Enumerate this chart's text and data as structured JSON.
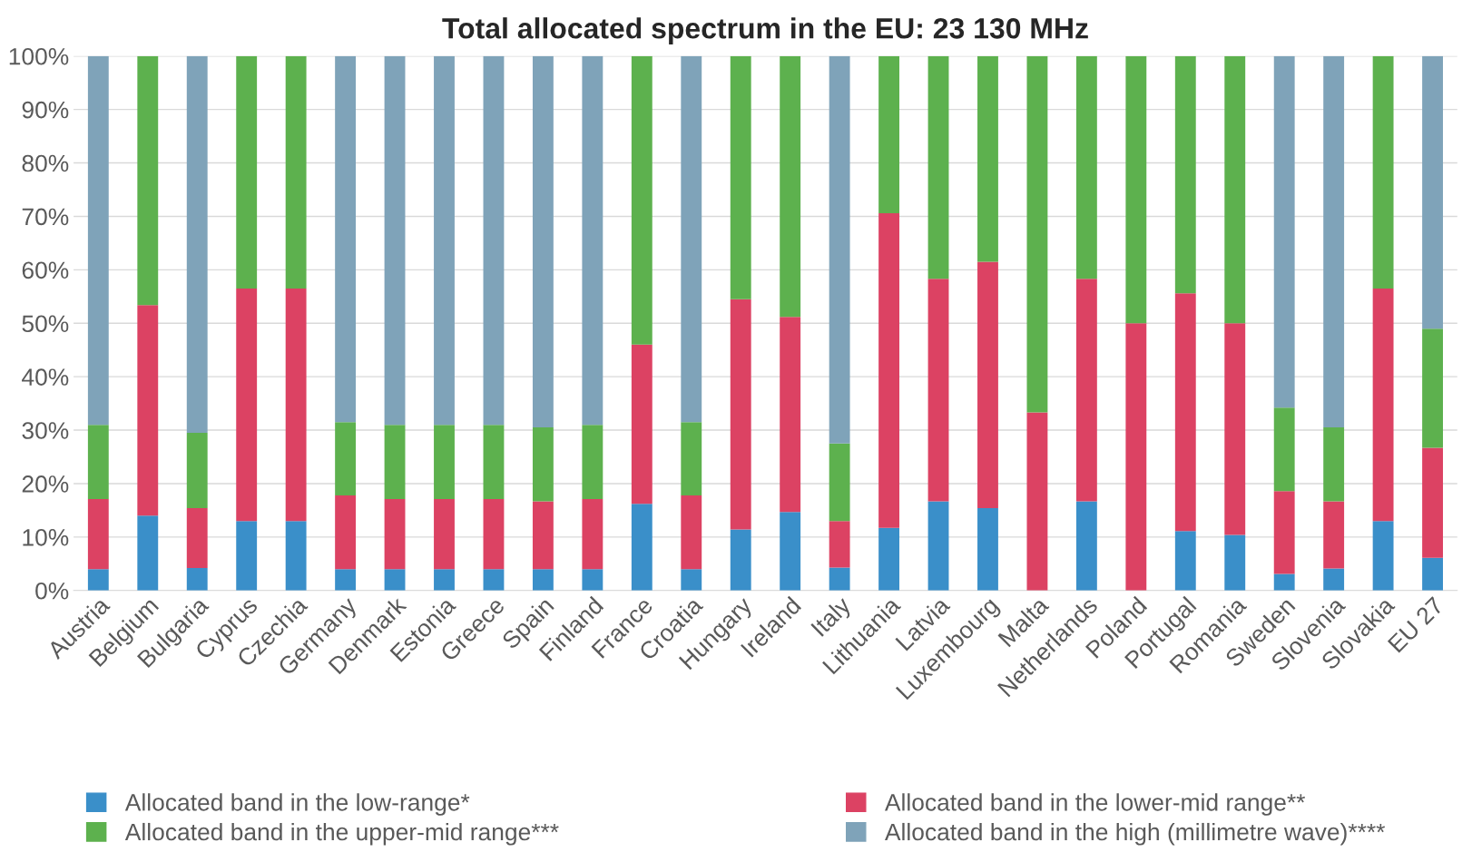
{
  "chart_data": {
    "type": "bar",
    "title": "Total allocated spectrum in the EU: 23 130 MHz",
    "stacked": true,
    "grid": "y",
    "legend": "bottom",
    "categories": [
      "Austria",
      "Belgium",
      "Bulgaria",
      "Cyprus",
      "Czechia",
      "Germany",
      "Denmark",
      "Estonia",
      "Greece",
      "Spain",
      "Finland",
      "France",
      "Croatia",
      "Hungary",
      "Ireland",
      "Italy",
      "Lithuania",
      "Latvia",
      "Luxembourg",
      "Malta",
      "Netherlands",
      "Poland",
      "Portugal",
      "Romania",
      "Sweden",
      "Slovenia",
      "Slovakia",
      "EU 27"
    ],
    "ylim": [
      0,
      100
    ],
    "yticks": [
      {
        "value": 0,
        "label": "0%"
      },
      {
        "value": 10,
        "label": "10%"
      },
      {
        "value": 20,
        "label": "20%"
      },
      {
        "value": 30,
        "label": "30%"
      },
      {
        "value": 40,
        "label": "40%"
      },
      {
        "value": 50,
        "label": "50%"
      },
      {
        "value": 60,
        "label": "60%"
      },
      {
        "value": 70,
        "label": "70%"
      },
      {
        "value": 80,
        "label": "80%"
      },
      {
        "value": 90,
        "label": "90%"
      },
      {
        "value": 100,
        "label": "100%"
      }
    ],
    "series": [
      {
        "name": "Allocated band in the low-range*",
        "color": "#3a8fc9",
        "values": [
          4,
          14,
          4.2,
          13,
          13,
          4,
          4,
          4,
          4,
          4,
          4,
          16.2,
          4,
          11.4,
          14.7,
          4.3,
          11.7,
          16.7,
          15.4,
          0,
          16.7,
          0,
          11.1,
          10.4,
          3.1,
          4.1,
          13,
          6.1
        ]
      },
      {
        "name": "Allocated band in the lower-mid range**",
        "color": "#dc4263",
        "values": [
          13.1,
          39.4,
          11.2,
          43.5,
          43.5,
          13.8,
          13.1,
          13.1,
          13.1,
          12.7,
          13.1,
          29.8,
          13.8,
          43.1,
          36.5,
          8.7,
          58.9,
          41.6,
          46.1,
          33.3,
          41.6,
          50,
          44.5,
          39.6,
          15.5,
          12.6,
          43.5,
          20.6
        ]
      },
      {
        "name": "Allocated band in the upper-mid range***",
        "color": "#5db14e",
        "values": [
          13.9,
          46.6,
          14.1,
          43.5,
          43.5,
          13.7,
          13.9,
          13.9,
          13.9,
          13.8,
          13.9,
          54,
          13.7,
          45.5,
          48.8,
          14.5,
          29.4,
          41.7,
          38.5,
          66.7,
          41.7,
          50,
          44.4,
          50,
          15.6,
          13.8,
          43.5,
          22.3
        ]
      },
      {
        "name": "Allocated band in the high (millimetre wave)****",
        "color": "#7fa3b9",
        "values": [
          69,
          0,
          70.5,
          0,
          0,
          68.5,
          69,
          69,
          69,
          69.5,
          69,
          0,
          68.5,
          0,
          0,
          72.5,
          0,
          0,
          0,
          0,
          0,
          0,
          0,
          0,
          65.8,
          69.5,
          0,
          51
        ]
      }
    ]
  }
}
